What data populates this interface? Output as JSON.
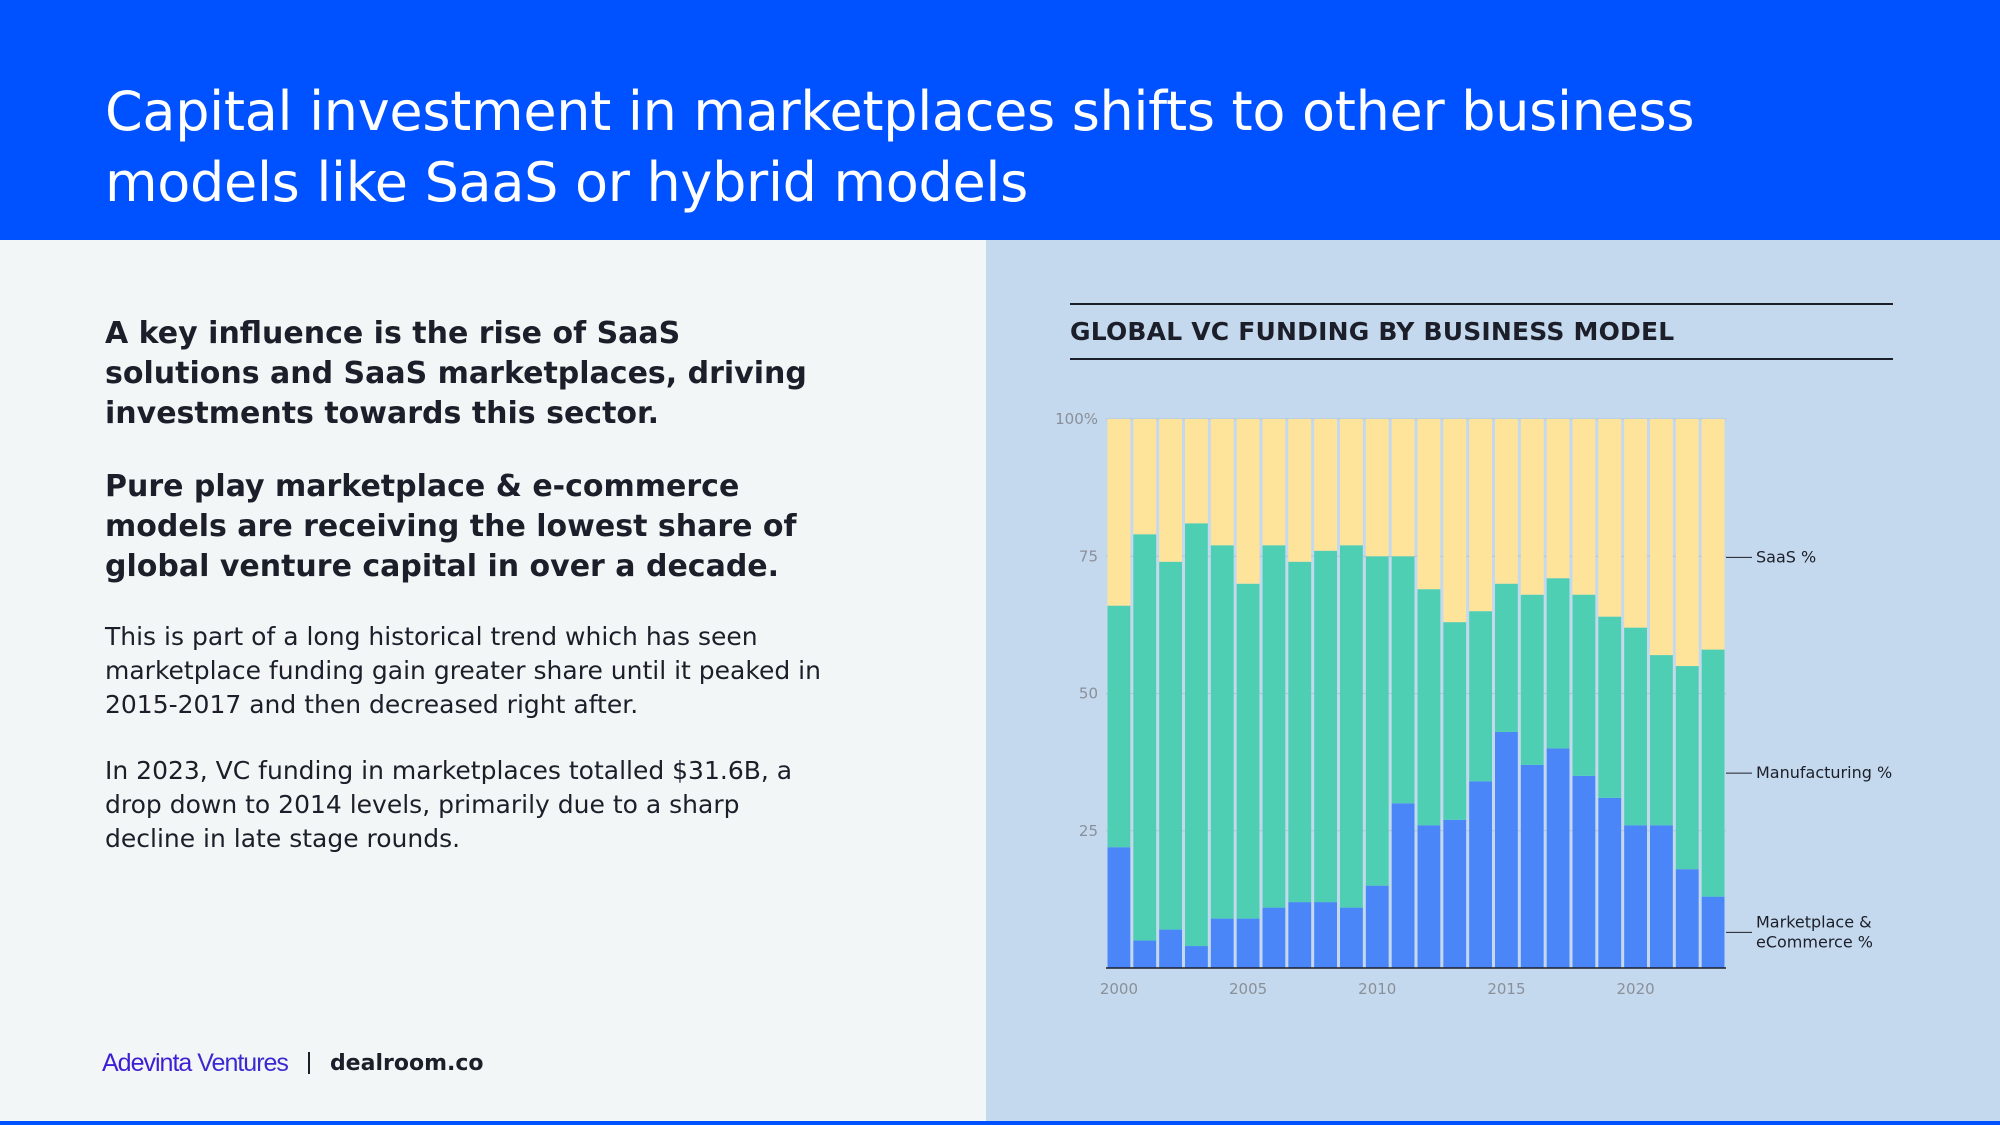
{
  "header": {
    "title": "Capital investment in marketplaces shifts to other business models like SaaS or hybrid models"
  },
  "content": {
    "lead1": "A key influence is the rise of SaaS solutions and SaaS marketplaces, driving investments towards this sector.",
    "lead2": "Pure play marketplace & e-commerce models are receiving the lowest share of global venture capital in over a decade.",
    "body1": "This is part of a long historical trend which has seen marketplace funding gain greater share until it peaked in 2015-2017 and then decreased right after.",
    "body2": "In 2023, VC funding in marketplaces totalled $31.6B, a drop down to 2014 levels, primarily due to a sharp decline in late stage rounds."
  },
  "footer": {
    "logo_adevinta_strong": "Adevinta",
    "logo_adevinta_light": " Ventures",
    "logo_dealroom": "dealroom.co"
  },
  "colors": {
    "brand_blue": "#0051ff",
    "marketplace": "#4a86f7",
    "manufacturing": "#4ecfb4",
    "saas": "#fee39b"
  },
  "chart_data": {
    "type": "bar",
    "stacked": true,
    "title": "GLOBAL VC FUNDING BY BUSINESS MODEL",
    "xlabel": "",
    "ylabel": "",
    "ylim": [
      0,
      100
    ],
    "y_ticks": [
      "100%",
      "75",
      "50",
      "25"
    ],
    "x_ticks": [
      "2000",
      "2005",
      "2010",
      "2015",
      "2020"
    ],
    "categories": [
      2000,
      2001,
      2002,
      2003,
      2004,
      2005,
      2006,
      2007,
      2008,
      2009,
      2010,
      2011,
      2012,
      2013,
      2014,
      2015,
      2016,
      2017,
      2018,
      2019,
      2020,
      2021,
      2022,
      2023
    ],
    "series": [
      {
        "name": "Marketplace & eCommerce %",
        "color": "#4a86f7",
        "values": [
          22,
          5,
          7,
          4,
          9,
          9,
          11,
          12,
          12,
          11,
          15,
          30,
          26,
          27,
          34,
          43,
          37,
          40,
          35,
          31,
          26,
          26,
          18,
          13
        ]
      },
      {
        "name": "Manufacturing %",
        "color": "#4ecfb4",
        "values": [
          44,
          74,
          67,
          77,
          68,
          61,
          66,
          62,
          64,
          66,
          60,
          45,
          43,
          36,
          31,
          27,
          31,
          31,
          33,
          33,
          36,
          31,
          37,
          45
        ]
      },
      {
        "name": "SaaS %",
        "color": "#fee39b",
        "values": [
          34,
          21,
          26,
          19,
          23,
          30,
          23,
          26,
          24,
          23,
          25,
          25,
          31,
          37,
          35,
          30,
          32,
          29,
          32,
          36,
          38,
          43,
          45,
          42
        ]
      }
    ],
    "legend": "right"
  }
}
